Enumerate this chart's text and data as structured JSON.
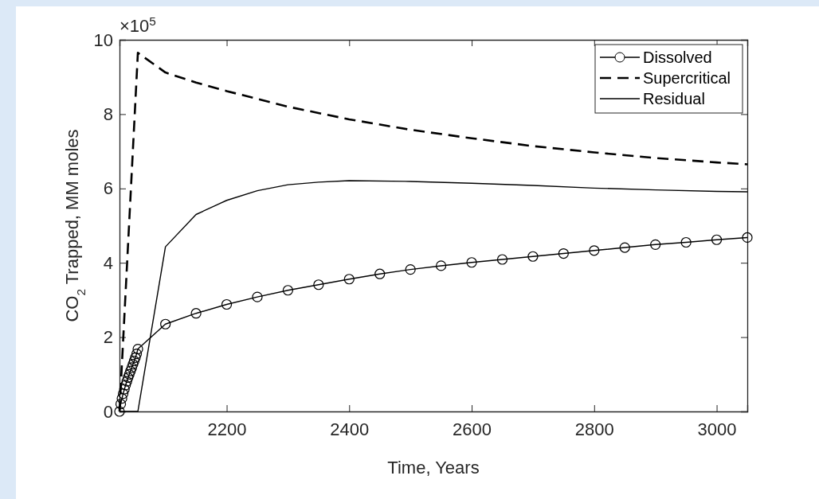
{
  "chart_data": {
    "type": "line",
    "xlabel": "Time, Years",
    "ylabel": "CO$_{2}$ Trapped, MM moles",
    "annotations": [
      "×10$^{5}$"
    ],
    "xlim": [
      2025,
      3050
    ],
    "xticks": [
      2200,
      2400,
      2600,
      2800,
      3000
    ],
    "ylim": [
      0,
      10
    ],
    "yticks": [
      0,
      2,
      4,
      6,
      8,
      10
    ],
    "grid": false,
    "legend": "top right",
    "series": [
      {
        "name": "Dissolved",
        "color": "#000000",
        "marker": "circle",
        "line_style": "solid",
        "x": [
          2025,
          2027,
          2029,
          2031,
          2033,
          2035,
          2037,
          2039,
          2041,
          2043,
          2045,
          2047,
          2049,
          2051,
          2053,
          2055,
          2100,
          2150,
          2200,
          2250,
          2300,
          2350,
          2400,
          2450,
          2500,
          2550,
          2600,
          2650,
          2700,
          2750,
          2800,
          2850,
          2900,
          2950,
          3000,
          3050
        ],
        "values": [
          0,
          0.2,
          0.35,
          0.48,
          0.6,
          0.71,
          0.81,
          0.91,
          1.0,
          1.09,
          1.18,
          1.27,
          1.36,
          1.45,
          1.55,
          1.68,
          2.35,
          2.64,
          2.88,
          3.08,
          3.26,
          3.41,
          3.56,
          3.7,
          3.82,
          3.92,
          4.01,
          4.09,
          4.17,
          4.25,
          4.33,
          4.41,
          4.49,
          4.55,
          4.62,
          4.68
        ]
      },
      {
        "name": "Supercritical",
        "color": "#000000",
        "marker": "none",
        "line_style": "dashed",
        "x": [
          2025,
          2055,
          2100,
          2150,
          2200,
          2300,
          2400,
          2500,
          2600,
          2700,
          2800,
          2900,
          3000,
          3050
        ],
        "values": [
          0,
          9.65,
          9.12,
          8.85,
          8.62,
          8.2,
          7.86,
          7.58,
          7.35,
          7.14,
          6.97,
          6.82,
          6.7,
          6.65
        ]
      },
      {
        "name": "Residual",
        "color": "#000000",
        "marker": "none",
        "line_style": "solid",
        "x": [
          2025,
          2055,
          2100,
          2150,
          2200,
          2250,
          2300,
          2350,
          2400,
          2500,
          2600,
          2700,
          2800,
          2900,
          3000,
          3050
        ],
        "values": [
          0,
          0,
          4.43,
          5.3,
          5.68,
          5.94,
          6.1,
          6.17,
          6.21,
          6.19,
          6.14,
          6.08,
          6.01,
          5.96,
          5.92,
          5.91
        ]
      }
    ]
  }
}
